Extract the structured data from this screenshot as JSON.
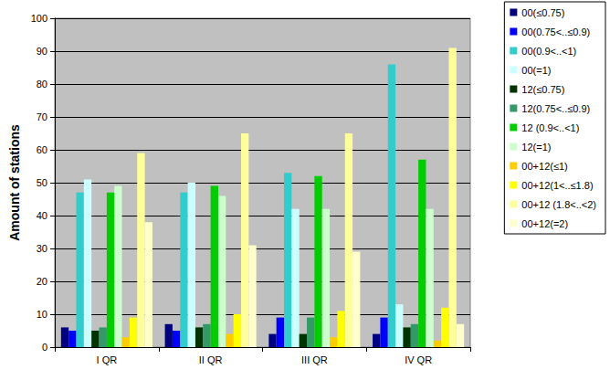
{
  "chart_data": {
    "type": "bar",
    "y_label": "Amount of stations",
    "categories": [
      "I QR",
      "II QR",
      "III QR",
      "IV QR"
    ],
    "series": [
      {
        "name": "00(≤0.75)",
        "color": "#000080",
        "values": [
          6,
          7,
          4,
          4
        ]
      },
      {
        "name": "00(0.75<..≤0.9)",
        "color": "#0000ff",
        "values": [
          5,
          5,
          9,
          9
        ]
      },
      {
        "name": "00(0.9<..<1)",
        "color": "#33cccc",
        "values": [
          47,
          47,
          53,
          86
        ]
      },
      {
        "name": "00(=1)",
        "color": "#ccffff",
        "values": [
          51,
          50,
          42,
          13
        ]
      },
      {
        "name": "12(≤0.75)",
        "color": "#003300",
        "values": [
          5,
          6,
          4,
          6
        ]
      },
      {
        "name": "12(0.75<..≤0.9)",
        "color": "#339966",
        "values": [
          6,
          7,
          9,
          7
        ]
      },
      {
        "name": "12 (0.9<..<1)",
        "color": "#00cc00",
        "values": [
          47,
          49,
          52,
          57
        ]
      },
      {
        "name": "12(=1)",
        "color": "#ccffcc",
        "values": [
          49,
          46,
          42,
          42
        ]
      },
      {
        "name": "00+12(≤1)",
        "color": "#ffcc00",
        "values": [
          3,
          4,
          3,
          2
        ]
      },
      {
        "name": "00+12(1<..≤1.8)",
        "color": "#ffff00",
        "values": [
          9,
          10,
          11,
          12
        ]
      },
      {
        "name": "00+12 (1.8<..<2)",
        "color": "#ffff99",
        "values": [
          59,
          65,
          65,
          91
        ]
      },
      {
        "name": "00+12(=2)",
        "color": "#ffffcc",
        "values": [
          38,
          31,
          29,
          7
        ]
      }
    ],
    "ylim": [
      0,
      100
    ],
    "yticks": [
      0,
      10,
      20,
      30,
      40,
      50,
      60,
      70,
      80,
      90,
      100
    ],
    "grid": true,
    "legend": "right"
  }
}
